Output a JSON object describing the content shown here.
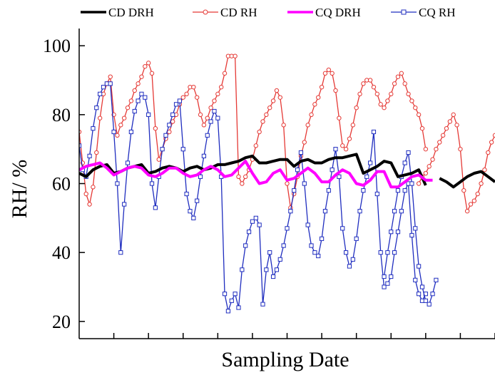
{
  "chart_data": {
    "type": "line",
    "title": "",
    "xlabel": "Sampling Date",
    "ylabel": "RH/ %",
    "ylim": [
      15,
      105
    ],
    "yticks": [
      20,
      40,
      60,
      80,
      100
    ],
    "xticks": [
      0,
      10,
      20,
      30,
      40,
      50,
      60,
      70,
      80,
      90,
      100,
      110,
      120
    ],
    "xlim": [
      0,
      120
    ],
    "xtick_labels_shown": false,
    "grid": false,
    "legend_position": "top",
    "series": [
      {
        "name": "CD DRH",
        "color": "#000000",
        "marker": "none",
        "segments": [
          {
            "x": [
              0,
              2,
              4,
              6,
              8,
              10,
              12,
              14,
              16,
              18,
              20,
              22,
              24,
              26,
              28,
              30,
              32,
              34,
              36,
              38,
              40,
              42,
              44,
              46,
              48,
              50,
              52,
              54,
              56,
              58,
              60,
              62,
              64,
              66,
              68,
              70,
              72,
              74,
              76,
              78,
              80,
              82,
              84,
              86,
              88,
              90,
              92,
              94,
              96,
              98,
              100
            ],
            "y": [
              63,
              62,
              64,
              65,
              65.5,
              63,
              63.5,
              64.5,
              65,
              65.5,
              63,
              63.5,
              64.5,
              65,
              64.5,
              63.5,
              64.5,
              65,
              64,
              64.5,
              65.5,
              65.5,
              66,
              66.5,
              67.5,
              68,
              66,
              66,
              66.5,
              67,
              67,
              65,
              66.5,
              67,
              66,
              66,
              67,
              67.5,
              67.5,
              68,
              68.5,
              63,
              64,
              65,
              66.5,
              66,
              62,
              62.5,
              63,
              64,
              59.5
            ]
          },
          {
            "x": [
              104,
              106,
              108,
              110,
              112,
              114,
              116,
              118,
              120
            ],
            "y": [
              61.5,
              60.5,
              59,
              60.5,
              62,
              63,
              63.5,
              62,
              60.5
            ]
          }
        ]
      },
      {
        "name": "CD RH",
        "color": "#e53935",
        "marker": "circle",
        "segments": [
          {
            "x": [
              0,
              1,
              2,
              3,
              4,
              5,
              6,
              7,
              8,
              9,
              10,
              11,
              12,
              13,
              14,
              15,
              16,
              17,
              18,
              19,
              20,
              21,
              22,
              23,
              24,
              25,
              26,
              27,
              28,
              29,
              30,
              31,
              32,
              33,
              34,
              35,
              36,
              37,
              38,
              39,
              40,
              41,
              42,
              43,
              44,
              45,
              46,
              47,
              48,
              49,
              50,
              51,
              52,
              53,
              54,
              55,
              56,
              57,
              58,
              59,
              60,
              61,
              62,
              63,
              64,
              65,
              66,
              67,
              68,
              69,
              70,
              71,
              72,
              73,
              74,
              75,
              76,
              77,
              78,
              79,
              80,
              81,
              82,
              83,
              84,
              85,
              86,
              87,
              88,
              89,
              90,
              91,
              92,
              93,
              94,
              95,
              96,
              97,
              98,
              99,
              100
            ],
            "y": [
              75,
              66,
              57,
              54,
              59,
              69,
              79,
              86,
              89,
              91,
              80,
              74,
              77,
              79,
              82,
              84,
              87,
              89,
              91,
              94,
              95,
              92,
              76,
              67,
              70,
              73,
              75,
              78,
              80,
              83,
              85,
              86,
              88,
              88,
              85,
              80,
              77,
              79,
              82,
              84,
              86,
              88,
              92,
              97,
              97,
              97,
              62,
              60,
              62,
              64,
              67,
              71,
              75,
              78,
              80,
              82,
              84,
              87,
              85,
              77,
              60,
              53,
              57,
              62,
              68,
              72,
              77,
              80,
              83,
              85,
              88,
              92,
              93,
              92,
              87,
              79,
              71,
              70,
              73,
              77,
              82,
              86,
              89,
              90,
              90,
              88,
              86,
              83,
              82,
              84,
              86,
              89,
              91,
              92,
              89,
              86,
              84,
              82,
              80,
              76,
              70
            ]
          },
          {
            "x": [
              98,
              99,
              100,
              101,
              102,
              103,
              104,
              105,
              106,
              107,
              108,
              109,
              110,
              111,
              112,
              113,
              114,
              115,
              116,
              117,
              118,
              119,
              120
            ],
            "y": [
              60,
              62,
              63,
              65,
              67,
              70,
              72,
              74,
              76,
              78,
              80,
              77,
              70,
              58,
              52,
              54,
              55,
              57,
              60,
              64,
              69,
              72,
              74
            ]
          }
        ]
      },
      {
        "name": "CQ DRH",
        "color": "#ff00ff",
        "marker": "none",
        "segments": [
          {
            "x": [
              0,
              2,
              4,
              6,
              8,
              10,
              12,
              14,
              16,
              18,
              20,
              22,
              24,
              26,
              28,
              30,
              32,
              34,
              36,
              38,
              40,
              42,
              44,
              46,
              48,
              50,
              52,
              54,
              56,
              58,
              60,
              62,
              64,
              66,
              68,
              70,
              72,
              74,
              76,
              78,
              80,
              82,
              84,
              86,
              88,
              90,
              92,
              94,
              96,
              98,
              100,
              102
            ],
            "y": [
              64,
              65,
              65.5,
              66,
              64.5,
              62.5,
              63.5,
              64.5,
              65,
              64.5,
              62.5,
              62,
              63,
              64.5,
              64.5,
              63,
              62,
              62.5,
              64,
              65,
              64,
              62,
              62.5,
              64.5,
              66.5,
              63,
              60,
              60.5,
              63,
              64,
              61,
              61.5,
              63,
              64.5,
              63,
              60.5,
              60.5,
              62.5,
              64,
              63,
              60,
              59.5,
              61,
              63.5,
              63.5,
              59,
              59,
              60.5,
              62,
              62.5,
              61,
              61
            ]
          }
        ]
      },
      {
        "name": "CQ RH",
        "color": "#1f2dbf",
        "marker": "square",
        "segments": [
          {
            "x": [
              0,
              1,
              2,
              3,
              4,
              5,
              6,
              7,
              8,
              9,
              10,
              11,
              12,
              13,
              14,
              15,
              16,
              17,
              18,
              19,
              20,
              21,
              22,
              23,
              24,
              25,
              26,
              27,
              28,
              29,
              30,
              31,
              32,
              33,
              34,
              35,
              36,
              37,
              38,
              39,
              40,
              41,
              42,
              43,
              44,
              45,
              46,
              47,
              48,
              49,
              50,
              51,
              52,
              53,
              54,
              55,
              56,
              57,
              58,
              59,
              60,
              61,
              62,
              63,
              64,
              65,
              66,
              67,
              68,
              69,
              70,
              71,
              72,
              73,
              74,
              75,
              76,
              77,
              78,
              79,
              80,
              81,
              82,
              83,
              84,
              85,
              86,
              87,
              88,
              89,
              90,
              91,
              92,
              93,
              94,
              95,
              96,
              97,
              98,
              99,
              100
            ],
            "y": [
              71,
              64,
              62,
              68,
              76,
              82,
              86,
              88,
              89,
              89,
              75,
              60,
              40,
              54,
              66,
              75,
              81,
              84,
              86,
              85,
              80,
              60,
              53,
              62,
              70,
              74,
              77,
              80,
              83,
              84,
              70,
              57,
              52,
              50,
              55,
              62,
              68,
              74,
              78,
              81,
              79,
              62,
              28,
              23,
              26,
              28,
              24,
              35,
              42,
              46,
              49,
              50,
              48,
              25,
              35,
              40,
              33,
              35,
              38,
              42,
              47,
              52,
              58,
              64,
              69,
              60,
              48,
              42,
              40,
              39,
              44,
              52,
              58,
              64,
              70,
              62,
              47,
              40,
              36,
              38,
              44,
              52,
              58,
              62,
              66,
              75,
              57,
              40,
              30,
              31,
              33,
              40,
              46,
              52,
              58,
              60,
              45,
              32,
              28,
              26,
              28
            ]
          },
          {
            "x": [
              88,
              89,
              90,
              91,
              92,
              93,
              94,
              95,
              96,
              97,
              98,
              99,
              100,
              101,
              102,
              103
            ],
            "y": [
              33,
              40,
              46,
              52,
              58,
              62,
              66,
              69,
              60,
              47,
              36,
              30,
              26,
              25,
              28,
              32
            ]
          }
        ]
      }
    ]
  }
}
